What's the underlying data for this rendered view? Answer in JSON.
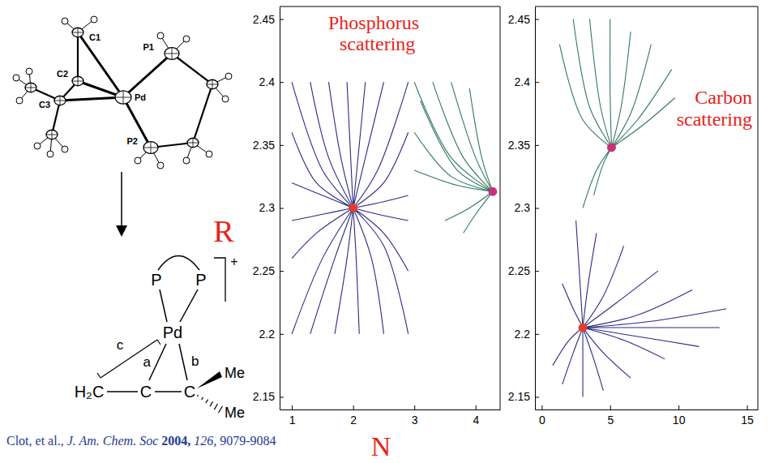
{
  "chart_data": [
    {
      "type": "line",
      "title": "Phosphorus scattering",
      "xlabel": "N",
      "ylabel": "R",
      "xlim": [
        0.8,
        4.4
      ],
      "xticks": [
        1,
        2,
        3,
        4
      ],
      "ylim": [
        2.14,
        2.46
      ],
      "yticks": [
        2.15,
        2.2,
        2.25,
        2.3,
        2.35,
        2.4,
        2.45
      ],
      "grid": false,
      "series": [
        {
          "color": "#2c2a85",
          "x": [
            1,
            1.5,
            2,
            null,
            1.3,
            1.6,
            2,
            null,
            1.6,
            1.8,
            2,
            null,
            1.9,
            1.95,
            2,
            null,
            2.2,
            2.1,
            2,
            null,
            2.5,
            2.2,
            2,
            null,
            2.9,
            2.4,
            2,
            null,
            1,
            1.4,
            2,
            null,
            1,
            1.5,
            2,
            null,
            2.9,
            2.5,
            2,
            null,
            2.9,
            2.5,
            2,
            null,
            1,
            1.5,
            2,
            null,
            1.3,
            1.7,
            2,
            null,
            1.7,
            1.9,
            2,
            null,
            2.1,
            2.05,
            2,
            null,
            2.5,
            2.3,
            2,
            null,
            2.9,
            2.5,
            2,
            null,
            1,
            1.4,
            2,
            null,
            1,
            1.5,
            2,
            null,
            2.9,
            2.5,
            2,
            null,
            2.9,
            2.4,
            2
          ],
          "values": [
            2.4,
            2.33,
            2.3,
            null,
            2.4,
            2.34,
            2.3,
            null,
            2.4,
            2.34,
            2.3,
            null,
            2.4,
            2.35,
            2.3,
            null,
            2.4,
            2.35,
            2.3,
            null,
            2.4,
            2.34,
            2.3,
            null,
            2.4,
            2.33,
            2.3,
            null,
            2.36,
            2.32,
            2.3,
            null,
            2.32,
            2.31,
            2.3,
            null,
            2.36,
            2.32,
            2.3,
            null,
            2.31,
            2.305,
            2.3,
            null,
            2.2,
            2.26,
            2.3,
            null,
            2.2,
            2.26,
            2.3,
            null,
            2.2,
            2.26,
            2.3,
            null,
            2.2,
            2.26,
            2.3,
            null,
            2.2,
            2.26,
            2.3,
            null,
            2.2,
            2.27,
            2.3,
            null,
            2.26,
            2.28,
            2.3,
            null,
            2.29,
            2.295,
            2.3,
            null,
            2.25,
            2.28,
            2.3,
            null,
            2.29,
            2.295,
            2.3
          ]
        },
        {
          "color": "#2f7a5c",
          "x": [
            3,
            3.6,
            4.28,
            null,
            3.3,
            3.8,
            4.28,
            null,
            3.6,
            4,
            4.28,
            null,
            3.9,
            4.1,
            4.28,
            null,
            3,
            3.6,
            4.28,
            null,
            3,
            3.7,
            4.28,
            null,
            3.1,
            3.7,
            4.28,
            null,
            3.5,
            3.9,
            4.28,
            null,
            3.8,
            4,
            4.28
          ],
          "values": [
            2.4,
            2.34,
            2.313,
            null,
            2.4,
            2.34,
            2.313,
            null,
            2.4,
            2.34,
            2.313,
            null,
            2.395,
            2.34,
            2.313,
            null,
            2.36,
            2.325,
            2.313,
            null,
            2.33,
            2.318,
            2.313,
            null,
            2.385,
            2.33,
            2.313,
            null,
            2.29,
            2.3,
            2.313,
            null,
            2.28,
            2.295,
            2.313
          ]
        },
        {
          "type": "scatter",
          "marker": "circle",
          "color": "#e0402a",
          "x": [
            2
          ],
          "values": [
            2.3
          ]
        },
        {
          "type": "scatter",
          "marker": "circle",
          "color": "#c8307a",
          "x": [
            4.28
          ],
          "values": [
            2.313
          ]
        }
      ]
    },
    {
      "type": "line",
      "title": "Carbon scattering",
      "xlim": [
        -0.5,
        15.8
      ],
      "xticks": [
        0,
        5,
        10,
        15
      ],
      "ylim": [
        2.14,
        2.46
      ],
      "yticks": [
        2.15,
        2.2,
        2.25,
        2.3,
        2.35,
        2.4,
        2.45
      ],
      "grid": false,
      "series": [
        {
          "color": "#2f7a5c",
          "x": [
            2.3,
            3.5,
            5.1,
            null,
            3.5,
            4.3,
            5.1,
            null,
            5,
            5,
            5.1,
            null,
            6.5,
            5.8,
            5.1,
            null,
            8,
            6.5,
            5.1,
            null,
            9.5,
            7,
            5.1,
            null,
            10,
            7.3,
            5.1,
            null,
            1.3,
            3,
            5.1,
            null,
            3,
            4,
            5.1,
            null,
            3.8,
            4.5,
            5.1
          ],
          "values": [
            2.45,
            2.38,
            2.348,
            null,
            2.45,
            2.38,
            2.348,
            null,
            2.45,
            2.39,
            2.348,
            null,
            2.44,
            2.38,
            2.348,
            null,
            2.43,
            2.375,
            2.348,
            null,
            2.41,
            2.37,
            2.348,
            null,
            2.39,
            2.365,
            2.348,
            null,
            2.43,
            2.37,
            2.348,
            null,
            2.3,
            2.33,
            2.348,
            null,
            2.31,
            2.335,
            2.348
          ]
        },
        {
          "color": "#2c2a85",
          "x": [
            2.5,
            2.8,
            3,
            null,
            4,
            3.4,
            3,
            null,
            6,
            4.5,
            3,
            null,
            8.5,
            5.5,
            3,
            null,
            11,
            7,
            3,
            null,
            13.5,
            8,
            3,
            null,
            13,
            8,
            3,
            null,
            11.5,
            7,
            3,
            null,
            9,
            6,
            3,
            null,
            6.5,
            4.5,
            3,
            null,
            4.5,
            3.8,
            3,
            null,
            3,
            3,
            3,
            null,
            1.5,
            2.3,
            3,
            null,
            0.8,
            2,
            3,
            null,
            1.5,
            2.3,
            3
          ],
          "values": [
            2.29,
            2.24,
            2.205,
            null,
            2.28,
            2.24,
            2.205,
            null,
            2.27,
            2.23,
            2.205,
            null,
            2.25,
            2.225,
            2.205,
            null,
            2.235,
            2.215,
            2.205,
            null,
            2.22,
            2.21,
            2.205,
            null,
            2.205,
            2.205,
            2.205,
            null,
            2.19,
            2.198,
            2.205,
            null,
            2.18,
            2.195,
            2.205,
            null,
            2.165,
            2.185,
            2.205,
            null,
            2.155,
            2.18,
            2.205,
            null,
            2.15,
            2.18,
            2.205,
            null,
            2.16,
            2.185,
            2.205,
            null,
            2.175,
            2.195,
            2.205,
            null,
            2.24,
            2.22,
            2.205
          ]
        },
        {
          "type": "scatter",
          "marker": "circle",
          "color": "#e0402a",
          "x": [
            3
          ],
          "values": [
            2.205
          ]
        },
        {
          "type": "scatter",
          "marker": "circle",
          "color": "#c8307a",
          "x": [
            5.1
          ],
          "values": [
            2.348
          ]
        }
      ]
    }
  ],
  "diagram": {
    "ortep": {
      "atom_labels": [
        "C1",
        "C2",
        "C3",
        "P1",
        "P2",
        "Pd"
      ]
    },
    "scheme": {
      "ligand_atoms": [
        "P",
        "P"
      ],
      "charge": "+",
      "metal": "Pd",
      "bond_labels": [
        "c",
        "a",
        "b"
      ],
      "methylene": "H₂C",
      "carbons": [
        "C",
        "C"
      ],
      "methyls": [
        "Me",
        "Me"
      ]
    }
  },
  "citation": {
    "authors": "Clot, et al.,",
    "journal": "J. Am. Chem. Soc",
    "year": "2004,",
    "volume": "126,",
    "pages": "9079-9084"
  }
}
